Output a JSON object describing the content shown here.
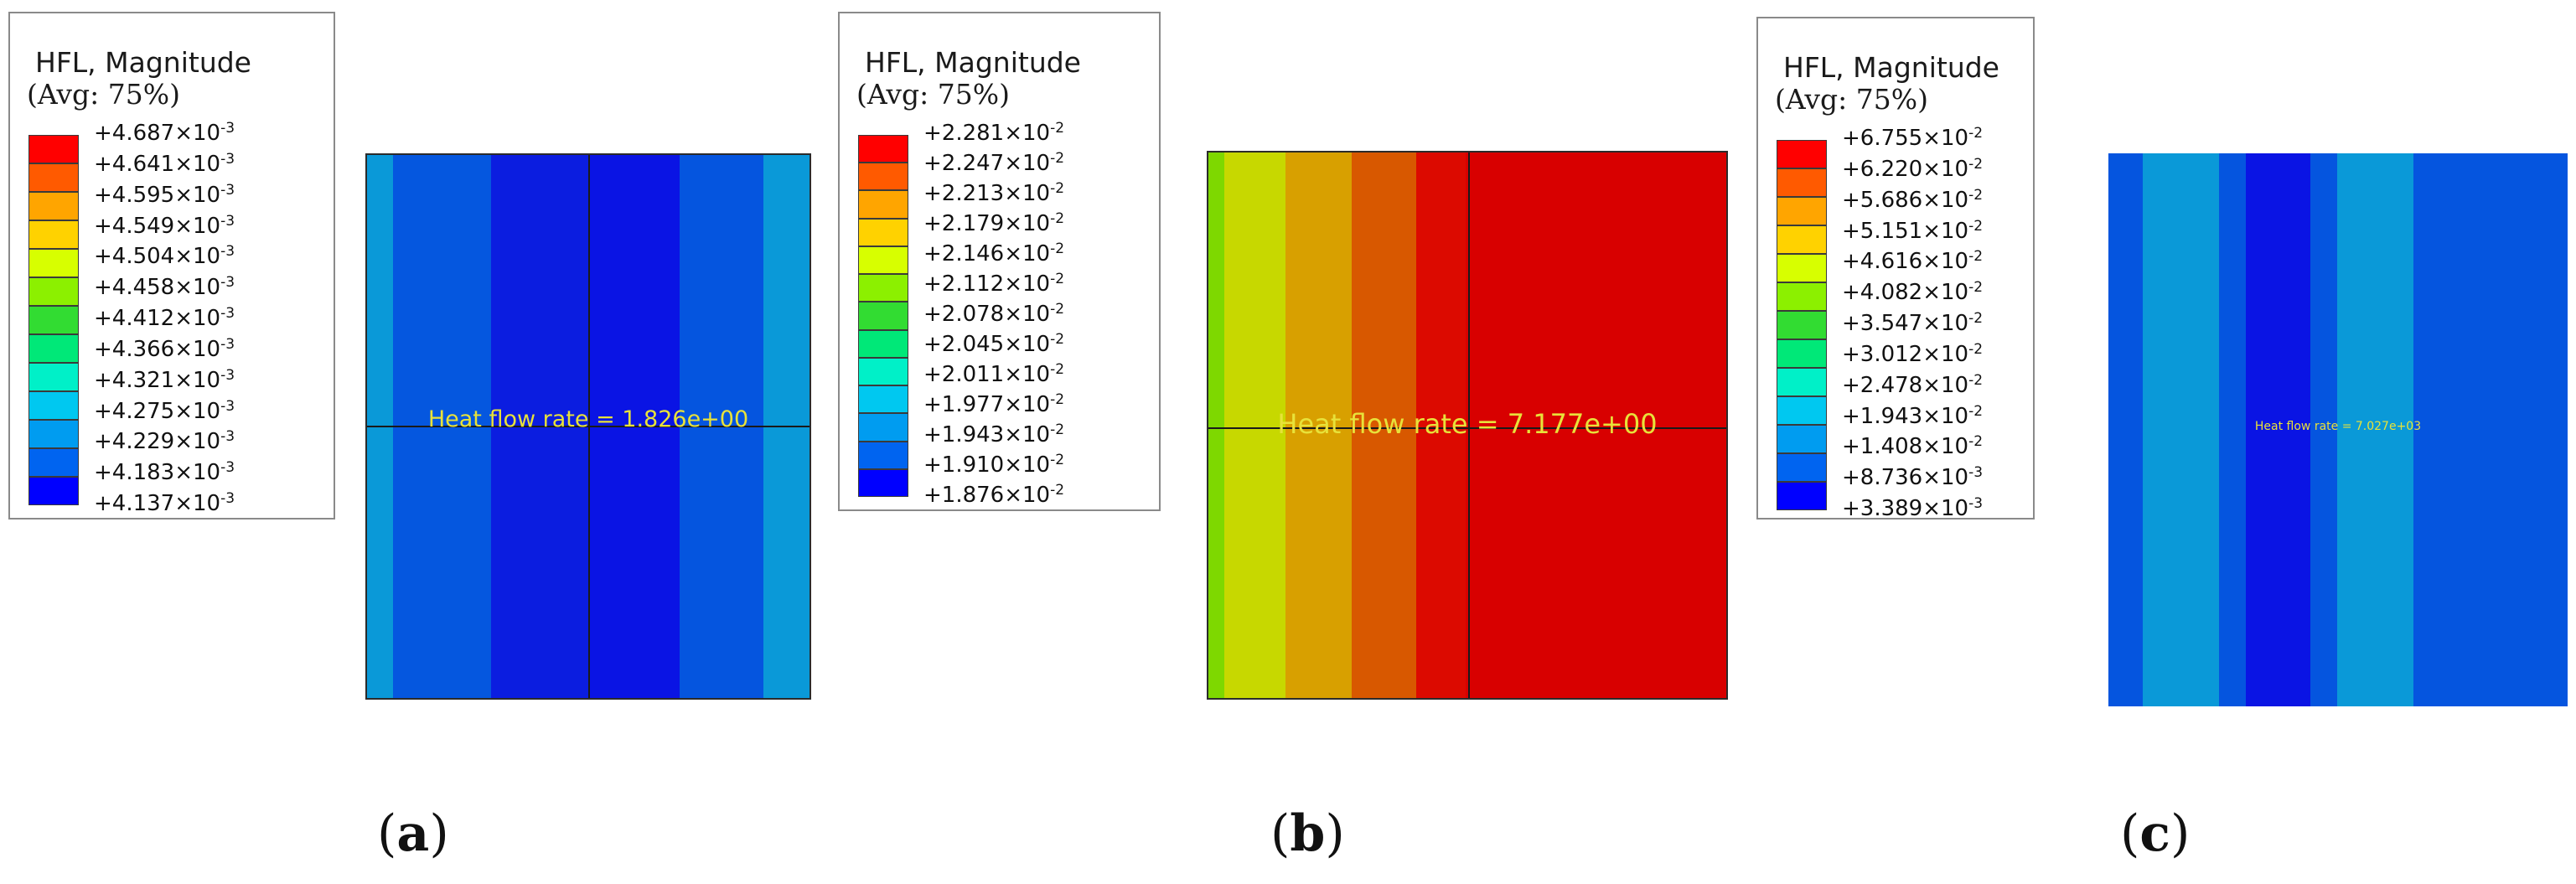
{
  "panels": [
    {
      "legend_title": "HFL, Magnitude",
      "legend_avg": "(Avg: 75%)",
      "legend_colors": [
        "#ff0000",
        "#ff5a00",
        "#ffa500",
        "#ffd200",
        "#d7ff00",
        "#8cf000",
        "#32dc32",
        "#00e878",
        "#00f0c8",
        "#00c8f0",
        "#009cf0",
        "#0064f0",
        "#0000ff"
      ],
      "legend_ticks": [
        {
          "mant": "+4.687",
          "exp": "-3"
        },
        {
          "mant": "+4.641",
          "exp": "-3"
        },
        {
          "mant": "+4.595",
          "exp": "-3"
        },
        {
          "mant": "+4.549",
          "exp": "-3"
        },
        {
          "mant": "+4.504",
          "exp": "-3"
        },
        {
          "mant": "+4.458",
          "exp": "-3"
        },
        {
          "mant": "+4.412",
          "exp": "-3"
        },
        {
          "mant": "+4.366",
          "exp": "-3"
        },
        {
          "mant": "+4.321",
          "exp": "-3"
        },
        {
          "mant": "+4.275",
          "exp": "-3"
        },
        {
          "mant": "+4.229",
          "exp": "-3"
        },
        {
          "mant": "+4.183",
          "exp": "-3"
        },
        {
          "mant": "+4.137",
          "exp": "-3"
        }
      ],
      "band_colors": [
        "#0a99d8",
        "#0557df",
        "#0b1de0",
        "#0a14e4",
        "#0555df",
        "#0a99d8"
      ],
      "heat_flow_label": "Heat flow rate = 1.826e+00",
      "caption_letter": "a"
    },
    {
      "legend_title": "HFL, Magnitude",
      "legend_avg": "(Avg: 75%)",
      "legend_colors": [
        "#ff0000",
        "#ff5a00",
        "#ffa500",
        "#ffd200",
        "#d7ff00",
        "#8cf000",
        "#32dc32",
        "#00e878",
        "#00f0c8",
        "#00c8f0",
        "#009cf0",
        "#0064f0",
        "#0000ff"
      ],
      "legend_ticks": [
        {
          "mant": "+2.281",
          "exp": "-2"
        },
        {
          "mant": "+2.247",
          "exp": "-2"
        },
        {
          "mant": "+2.213",
          "exp": "-2"
        },
        {
          "mant": "+2.179",
          "exp": "-2"
        },
        {
          "mant": "+2.146",
          "exp": "-2"
        },
        {
          "mant": "+2.112",
          "exp": "-2"
        },
        {
          "mant": "+2.078",
          "exp": "-2"
        },
        {
          "mant": "+2.045",
          "exp": "-2"
        },
        {
          "mant": "+2.011",
          "exp": "-2"
        },
        {
          "mant": "+1.977",
          "exp": "-2"
        },
        {
          "mant": "+1.943",
          "exp": "-2"
        },
        {
          "mant": "+1.910",
          "exp": "-2"
        },
        {
          "mant": "+1.876",
          "exp": "-2"
        }
      ],
      "band_colors": [
        "#7ed800",
        "#c7d800",
        "#d8a000",
        "#d85800",
        "#dc0a00",
        "#d80000"
      ],
      "heat_flow_label": "Heat flow rate = 7.177e+00",
      "caption_letter": "b"
    },
    {
      "legend_title": "HFL, Magnitude",
      "legend_avg": "(Avg: 75%)",
      "legend_colors": [
        "#ff0000",
        "#ff5a00",
        "#ffa500",
        "#ffd200",
        "#d7ff00",
        "#8cf000",
        "#32dc32",
        "#00e878",
        "#00f0c8",
        "#00c8f0",
        "#009cf0",
        "#0064f0",
        "#0000ff"
      ],
      "legend_ticks": [
        {
          "mant": "+6.755",
          "exp": "-2"
        },
        {
          "mant": "+6.220",
          "exp": "-2"
        },
        {
          "mant": "+5.686",
          "exp": "-2"
        },
        {
          "mant": "+5.151",
          "exp": "-2"
        },
        {
          "mant": "+4.616",
          "exp": "-2"
        },
        {
          "mant": "+4.082",
          "exp": "-2"
        },
        {
          "mant": "+3.547",
          "exp": "-2"
        },
        {
          "mant": "+3.012",
          "exp": "-2"
        },
        {
          "mant": "+2.478",
          "exp": "-2"
        },
        {
          "mant": "+1.943",
          "exp": "-2"
        },
        {
          "mant": "+1.408",
          "exp": "-2"
        },
        {
          "mant": "+8.736",
          "exp": "-3"
        },
        {
          "mant": "+3.389",
          "exp": "-3"
        }
      ],
      "band_colors": [
        "#0555df",
        "#0a99d8",
        "#0555df",
        "#0a14e4",
        "#0555df",
        "#0a99d8",
        "#0555df"
      ],
      "heat_flow_label": "Heat flow rate = 7.027e+03",
      "caption_letter": "c"
    }
  ]
}
